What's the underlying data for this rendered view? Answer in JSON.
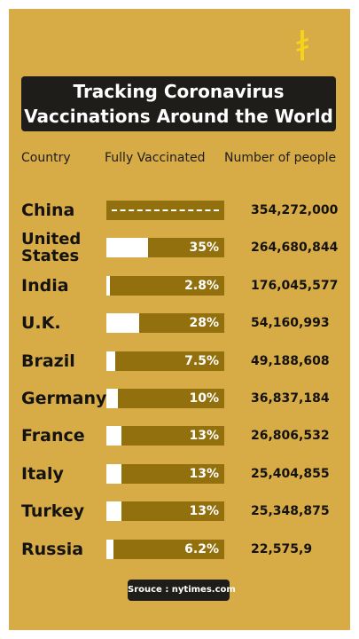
{
  "title_line1": "Tracking Coronavirus",
  "title_line2": "Vaccinations Around the World",
  "headers": {
    "country": "Country",
    "vaccinated": "Fully Vaccinated",
    "people": "Number of people"
  },
  "source": "Srouce : nytimes.com",
  "colors": {
    "background": "#d7ab45",
    "bar": "#93700e",
    "fill": "#ffffff",
    "banner": "#1f1d1a"
  },
  "chart_data": {
    "type": "bar",
    "title": "Tracking Coronavirus Vaccinations Around the World",
    "categories": [
      "China",
      "United States",
      "India",
      "U.K.",
      "Brazil",
      "Germany",
      "France",
      "Italy",
      "Turkey",
      "Russia"
    ],
    "series": [
      {
        "values": [
          null,
          35,
          2.8,
          28,
          7.5,
          10,
          13,
          13,
          13,
          6.2
        ]
      }
    ],
    "value_labels": [
      "----------------------",
      "35%",
      "2.8%",
      "28%",
      "7.5%",
      "10%",
      "13%",
      "13%",
      "13%",
      "6.2%"
    ],
    "people": [
      "354,272,000",
      "264,680,844",
      "176,045,577",
      "54,160,993",
      "49,188,608",
      "36,837,184",
      "26,806,532",
      "25,404,855",
      "25,348,875",
      "22,575,9"
    ],
    "ylim": [
      0,
      100
    ]
  }
}
